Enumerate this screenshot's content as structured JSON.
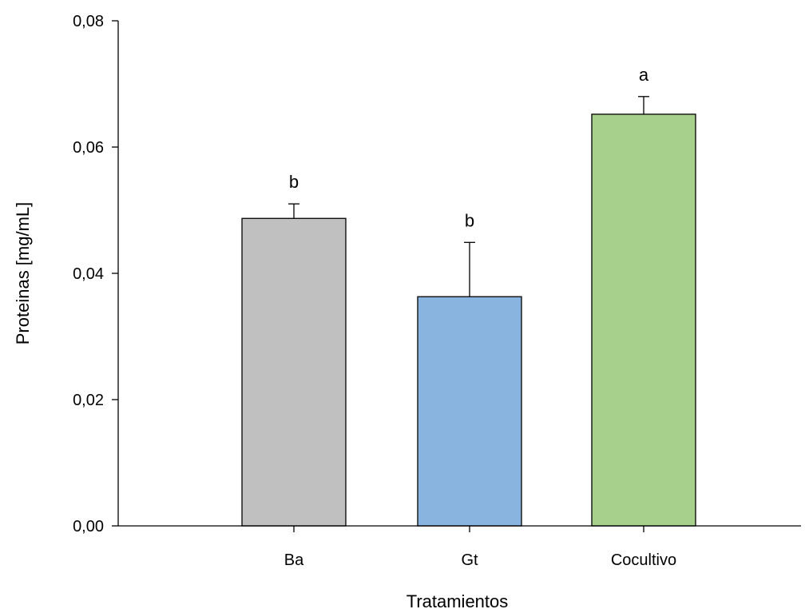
{
  "chart_data": {
    "type": "bar",
    "title": "",
    "xlabel": "Tratamientos",
    "ylabel": "Proteinas [mg/mL]",
    "categories": [
      "Ba",
      "Gt",
      "Cocultivo"
    ],
    "values": [
      0.0487,
      0.0363,
      0.0652
    ],
    "errors": [
      0.0023,
      0.0086,
      0.0028
    ],
    "significance": [
      "b",
      "b",
      "a"
    ],
    "colors": [
      "#c0c0c0",
      "#8ab4e0",
      "#a8d08d"
    ],
    "ylim": [
      0,
      0.08
    ],
    "yticks": [
      0,
      0.02,
      0.04,
      0.06,
      0.08
    ],
    "ytick_labels": [
      "0,00",
      "0,02",
      "0,04",
      "0,06",
      "0,08"
    ],
    "grid": false,
    "legend": "none"
  }
}
